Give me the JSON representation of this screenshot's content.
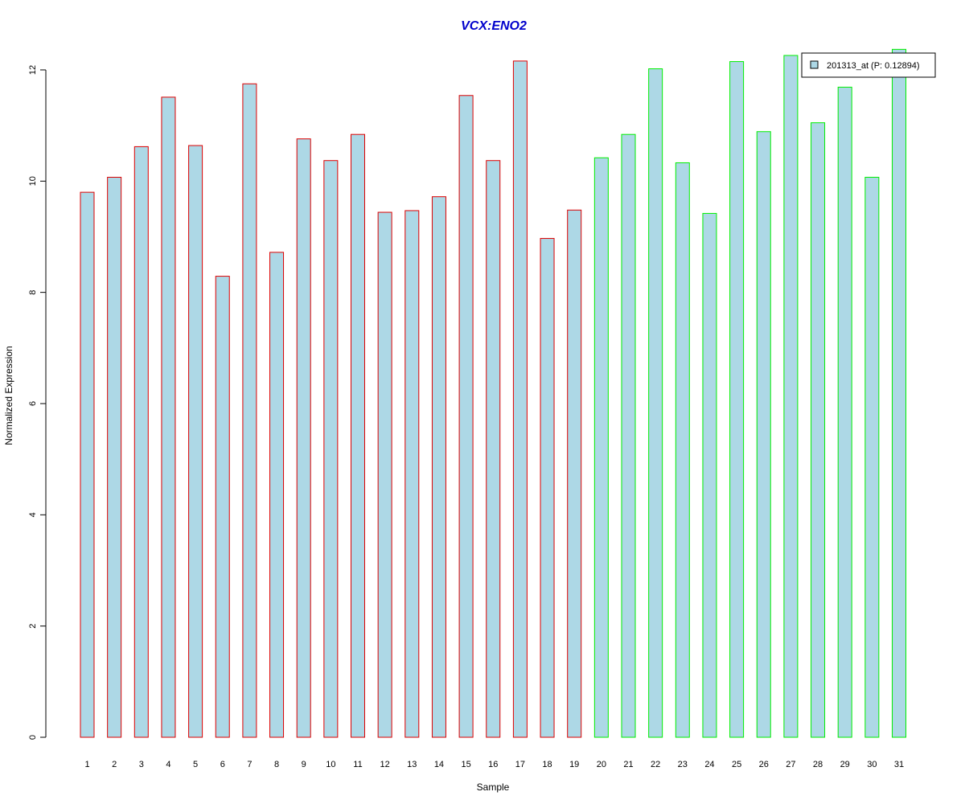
{
  "chart_data": {
    "type": "bar",
    "title": "VCX:ENO2",
    "xlabel": "Sample",
    "ylabel": "Normalized Expression",
    "ylim": [
      0,
      12.4
    ],
    "yticks": [
      0,
      2,
      4,
      6,
      8,
      10,
      12
    ],
    "grid": false,
    "legend_position": "top-right",
    "categories": [
      "1",
      "2",
      "3",
      "4",
      "5",
      "6",
      "7",
      "8",
      "9",
      "10",
      "11",
      "12",
      "13",
      "14",
      "15",
      "16",
      "17",
      "18",
      "19",
      "20",
      "21",
      "22",
      "23",
      "24",
      "25",
      "26",
      "27",
      "28",
      "29",
      "30",
      "31"
    ],
    "series": [
      {
        "name": "201313_at (P: 0.12894)",
        "values": [
          9.8,
          10.07,
          10.62,
          11.51,
          10.64,
          8.29,
          11.75,
          8.72,
          10.76,
          10.37,
          10.84,
          9.44,
          9.47,
          9.72,
          11.54,
          10.37,
          12.16,
          8.97,
          9.48,
          10.42,
          10.84,
          12.02,
          10.33,
          9.42,
          12.15,
          10.89,
          12.26,
          11.05,
          11.69,
          10.07,
          12.37
        ],
        "groups": [
          "red",
          "red",
          "red",
          "red",
          "red",
          "red",
          "red",
          "red",
          "red",
          "red",
          "red",
          "red",
          "red",
          "red",
          "red",
          "red",
          "red",
          "red",
          "red",
          "green",
          "green",
          "green",
          "green",
          "green",
          "green",
          "green",
          "green",
          "green",
          "green",
          "green",
          "green"
        ]
      }
    ],
    "colors": {
      "title": "#0000cc",
      "bar_fill": "#add8e6",
      "group_red": "#dd0000",
      "group_green": "#00ee00",
      "axis": "#000000"
    }
  }
}
